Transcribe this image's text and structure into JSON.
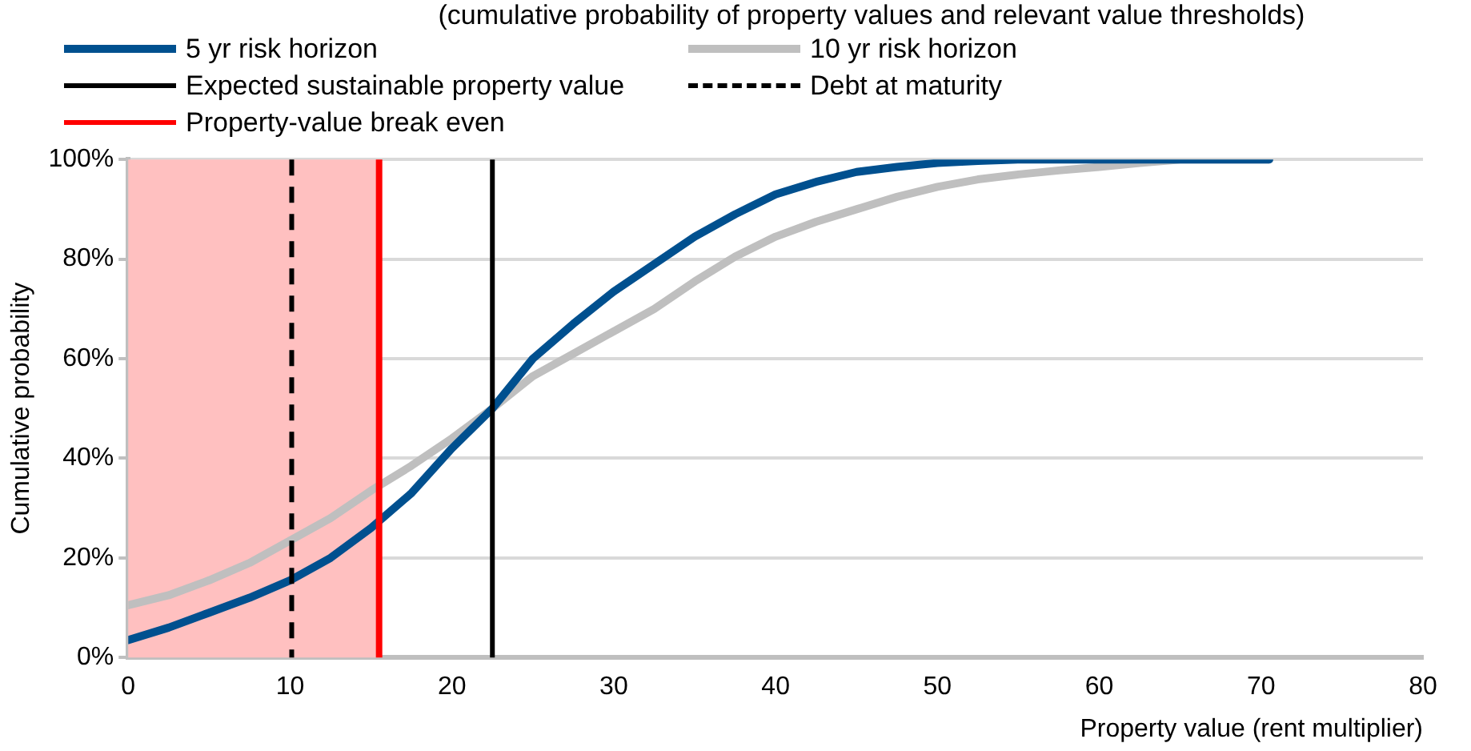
{
  "chart_data": {
    "type": "line",
    "subtitle": "(cumulative probability of property values and relevant value thresholds)",
    "xlabel": "Property value (rent multiplier)",
    "ylabel": "Cumulative probability",
    "xlim": [
      0,
      80
    ],
    "xticks": [
      0,
      10,
      20,
      30,
      40,
      50,
      60,
      70,
      80
    ],
    "ylim": [
      0,
      100
    ],
    "yticks": [
      {
        "value": 0,
        "label": "0%"
      },
      {
        "value": 20,
        "label": "20%"
      },
      {
        "value": 40,
        "label": "40%"
      },
      {
        "value": 60,
        "label": "60%"
      },
      {
        "value": 80,
        "label": "80%"
      },
      {
        "value": 100,
        "label": "100%"
      }
    ],
    "grid": "y",
    "legend": "top",
    "marker": "none",
    "line_style": "solid",
    "series": [
      {
        "name": "5 yr risk horizon",
        "color": "#00508f",
        "x": [
          0,
          2.5,
          5,
          7.5,
          10,
          12.5,
          15,
          17.5,
          20,
          22.5,
          25,
          27.5,
          30,
          32.5,
          35,
          37.5,
          40,
          42.5,
          45,
          47.5,
          50,
          52.5,
          55,
          60,
          65,
          70.5
        ],
        "values": [
          3.5,
          6,
          9,
          12,
          15.5,
          20,
          26,
          33,
          42,
          50,
          60,
          67,
          73.5,
          79,
          84.5,
          89,
          93,
          95.5,
          97.5,
          98.5,
          99.3,
          99.7,
          100,
          100,
          100,
          100
        ]
      },
      {
        "name": "10 yr risk horizon",
        "color": "#bfbfbf",
        "x": [
          0,
          2.5,
          5,
          7.5,
          10,
          12.5,
          15,
          17.5,
          20,
          22.5,
          25,
          27.5,
          30,
          32.5,
          35,
          37.5,
          40,
          42.5,
          45,
          47.5,
          50,
          52.5,
          55,
          57.5,
          60,
          62.5,
          65,
          70.5
        ],
        "values": [
          10.5,
          12.5,
          15.5,
          19,
          23.5,
          28,
          33.5,
          38.5,
          44,
          50,
          56.5,
          61,
          65.5,
          70,
          75.5,
          80.5,
          84.5,
          87.5,
          90,
          92.5,
          94.5,
          96,
          97,
          97.8,
          98.5,
          99.3,
          100,
          100
        ]
      }
    ],
    "ref_lines": [
      {
        "axis": "x",
        "value": 22.5,
        "label": "Expected sustainable property value",
        "color": "#000000",
        "line_style": "solid"
      },
      {
        "axis": "x",
        "value": 10.1,
        "label": "Debt at maturity",
        "color": "#000000",
        "line_style": "dashed"
      },
      {
        "axis": "x",
        "value": 15.5,
        "label": "Property-value break even",
        "color": "#ff0000",
        "line_style": "solid"
      }
    ],
    "bands": [
      {
        "axis": "x",
        "from": 0,
        "to": 15.5,
        "color": "#ffc0c0"
      }
    ]
  }
}
